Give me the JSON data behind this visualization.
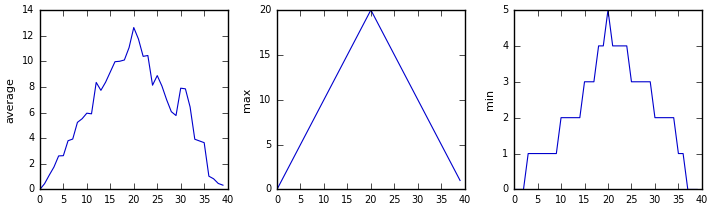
{
  "avg_data": [
    0.0,
    0.45,
    1.117,
    1.75,
    2.617,
    2.633,
    3.8,
    3.933,
    5.233,
    5.517,
    5.95,
    5.9,
    8.35,
    7.733,
    8.367,
    9.167,
    9.967,
    10.0,
    10.1,
    11.067,
    12.633,
    11.733,
    10.383,
    10.45,
    8.133,
    8.883,
    8.067,
    7.0,
    6.067,
    5.767,
    7.9,
    7.85,
    6.433,
    3.917,
    3.783,
    3.65,
    1.033,
    0.833,
    0.467,
    0.333
  ],
  "max_data": [
    0,
    1,
    2,
    3,
    4,
    5,
    6,
    7,
    8,
    9,
    10,
    11,
    12,
    13,
    14,
    15,
    16,
    17,
    18,
    19,
    20,
    19,
    18,
    17,
    16,
    15,
    14,
    13,
    12,
    11,
    10,
    9,
    8,
    7,
    6,
    5,
    4,
    3,
    2,
    1
  ],
  "min_data": [
    0,
    0,
    0,
    1,
    1,
    1,
    1,
    1,
    1,
    1,
    2,
    2,
    2,
    2,
    2,
    3,
    3,
    3,
    4,
    4,
    5,
    4,
    4,
    4,
    4,
    3,
    3,
    3,
    3,
    3,
    2,
    2,
    2,
    2,
    2,
    1,
    1,
    0,
    0,
    0
  ],
  "line_color": "#0000CD",
  "ylabel_avg": "average",
  "ylabel_max": "max",
  "ylabel_min": "min",
  "xlim": [
    0,
    40
  ],
  "ylim_avg": [
    0,
    14
  ],
  "ylim_max": [
    0,
    20
  ],
  "ylim_min": [
    0,
    5
  ],
  "figsize": [
    7.13,
    2.1
  ],
  "dpi": 100,
  "tick_fontsize": 7,
  "label_fontsize": 8
}
